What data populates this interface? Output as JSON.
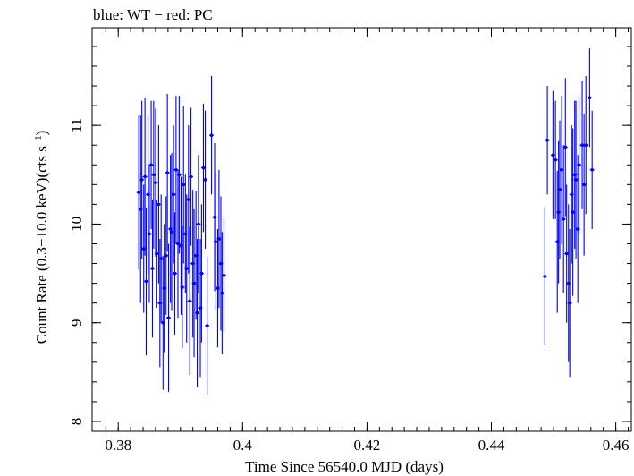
{
  "chart_data": {
    "type": "scatter",
    "title": "blue: WT − red: PC",
    "xlabel": "Time Since 56540.0 MJD (days)",
    "ylabel_main": "Count Rate (0.3−10.0 keV)(cts s",
    "ylabel_sup": "−1",
    "ylabel_close": ")",
    "xlim": [
      0.3758,
      0.4625
    ],
    "ylim": [
      7.9,
      11.99
    ],
    "xticks": [
      0.38,
      0.4,
      0.42,
      0.44,
      0.46
    ],
    "xtick_labels": [
      "0.38",
      "0.4",
      "0.42",
      "0.44",
      "0.46"
    ],
    "yticks": [
      8,
      9,
      10,
      11
    ],
    "ytick_labels": [
      "8",
      "9",
      "10",
      "11"
    ],
    "series": [
      {
        "color": "#0000ff",
        "points": [
          [
            0.3833,
            10.32,
            0.78
          ],
          [
            0.3836,
            10.15,
            0.95
          ],
          [
            0.3838,
            10.45,
            0.8
          ],
          [
            0.3841,
            9.75,
            0.65
          ],
          [
            0.3843,
            10.48,
            0.8
          ],
          [
            0.3845,
            9.42,
            0.75
          ],
          [
            0.3848,
            10.3,
            0.8
          ],
          [
            0.385,
            9.9,
            0.7
          ],
          [
            0.3853,
            10.6,
            0.65
          ],
          [
            0.3855,
            9.55,
            0.7
          ],
          [
            0.3857,
            10.5,
            0.75
          ],
          [
            0.386,
            10.42,
            0.75
          ],
          [
            0.3862,
            9.7,
            0.55
          ],
          [
            0.3865,
            10.2,
            0.8
          ],
          [
            0.3867,
            9.2,
            0.65
          ],
          [
            0.3869,
            9.65,
            0.65
          ],
          [
            0.3872,
            9.0,
            0.68
          ],
          [
            0.3874,
            9.35,
            0.65
          ],
          [
            0.3877,
            9.68,
            0.6
          ],
          [
            0.3879,
            10.52,
            0.8
          ],
          [
            0.3881,
            9.05,
            0.75
          ],
          [
            0.3884,
            9.95,
            0.75
          ],
          [
            0.3886,
            9.92,
            0.8
          ],
          [
            0.3889,
            10.3,
            0.7
          ],
          [
            0.3891,
            9.5,
            0.62
          ],
          [
            0.3893,
            10.55,
            0.75
          ],
          [
            0.3896,
            9.8,
            0.75
          ],
          [
            0.3898,
            10.5,
            0.8
          ],
          [
            0.3901,
            9.78,
            0.7
          ],
          [
            0.3903,
            9.36,
            0.62
          ],
          [
            0.3905,
            10.4,
            0.8
          ],
          [
            0.3908,
            9.9,
            0.6
          ],
          [
            0.391,
            9.55,
            0.75
          ],
          [
            0.3913,
            10.25,
            0.75
          ],
          [
            0.3915,
            9.22,
            0.75
          ],
          [
            0.3917,
            10.48,
            0.7
          ],
          [
            0.392,
            9.6,
            0.75
          ],
          [
            0.3922,
            9.4,
            0.75
          ],
          [
            0.3925,
            9.68,
            0.65
          ],
          [
            0.3927,
            9.1,
            0.75
          ],
          [
            0.3929,
            10.0,
            0.7
          ],
          [
            0.3932,
            9.15,
            0.7
          ],
          [
            0.3934,
            9.5,
            0.7
          ],
          [
            0.3937,
            10.57,
            0.65
          ],
          [
            0.394,
            10.45,
            0.7
          ],
          [
            0.3943,
            8.97,
            0.7
          ],
          [
            0.395,
            10.9,
            0.6
          ],
          [
            0.3955,
            10.07,
            0.75
          ],
          [
            0.3957,
            9.82,
            0.7
          ],
          [
            0.396,
            9.35,
            0.6
          ],
          [
            0.3962,
            9.85,
            0.7
          ],
          [
            0.3965,
            9.6,
            0.68
          ],
          [
            0.3967,
            9.3,
            0.62
          ],
          [
            0.397,
            9.48,
            0.58
          ],
          [
            0.4486,
            9.47,
            0.7
          ],
          [
            0.449,
            10.85,
            0.55
          ],
          [
            0.4499,
            10.7,
            0.65
          ],
          [
            0.4503,
            10.65,
            0.6
          ],
          [
            0.4506,
            9.82,
            0.72
          ],
          [
            0.4508,
            10.12,
            0.72
          ],
          [
            0.451,
            10.35,
            0.7
          ],
          [
            0.4513,
            10.55,
            0.75
          ],
          [
            0.4516,
            10.05,
            0.75
          ],
          [
            0.4519,
            10.78,
            0.7
          ],
          [
            0.4521,
            9.7,
            0.7
          ],
          [
            0.4524,
            9.4,
            0.8
          ],
          [
            0.4526,
            9.2,
            0.75
          ],
          [
            0.4529,
            10.3,
            0.7
          ],
          [
            0.4531,
            10.12,
            0.85
          ],
          [
            0.4534,
            10.5,
            0.75
          ],
          [
            0.4536,
            10.45,
            0.8
          ],
          [
            0.4539,
            9.95,
            0.75
          ],
          [
            0.4541,
            10.6,
            0.7
          ],
          [
            0.4546,
            10.8,
            0.65
          ],
          [
            0.4549,
            10.4,
            0.72
          ],
          [
            0.4552,
            10.8,
            0.7
          ],
          [
            0.4558,
            11.28,
            0.5
          ],
          [
            0.4562,
            10.55,
            0.6
          ]
        ]
      }
    ]
  }
}
